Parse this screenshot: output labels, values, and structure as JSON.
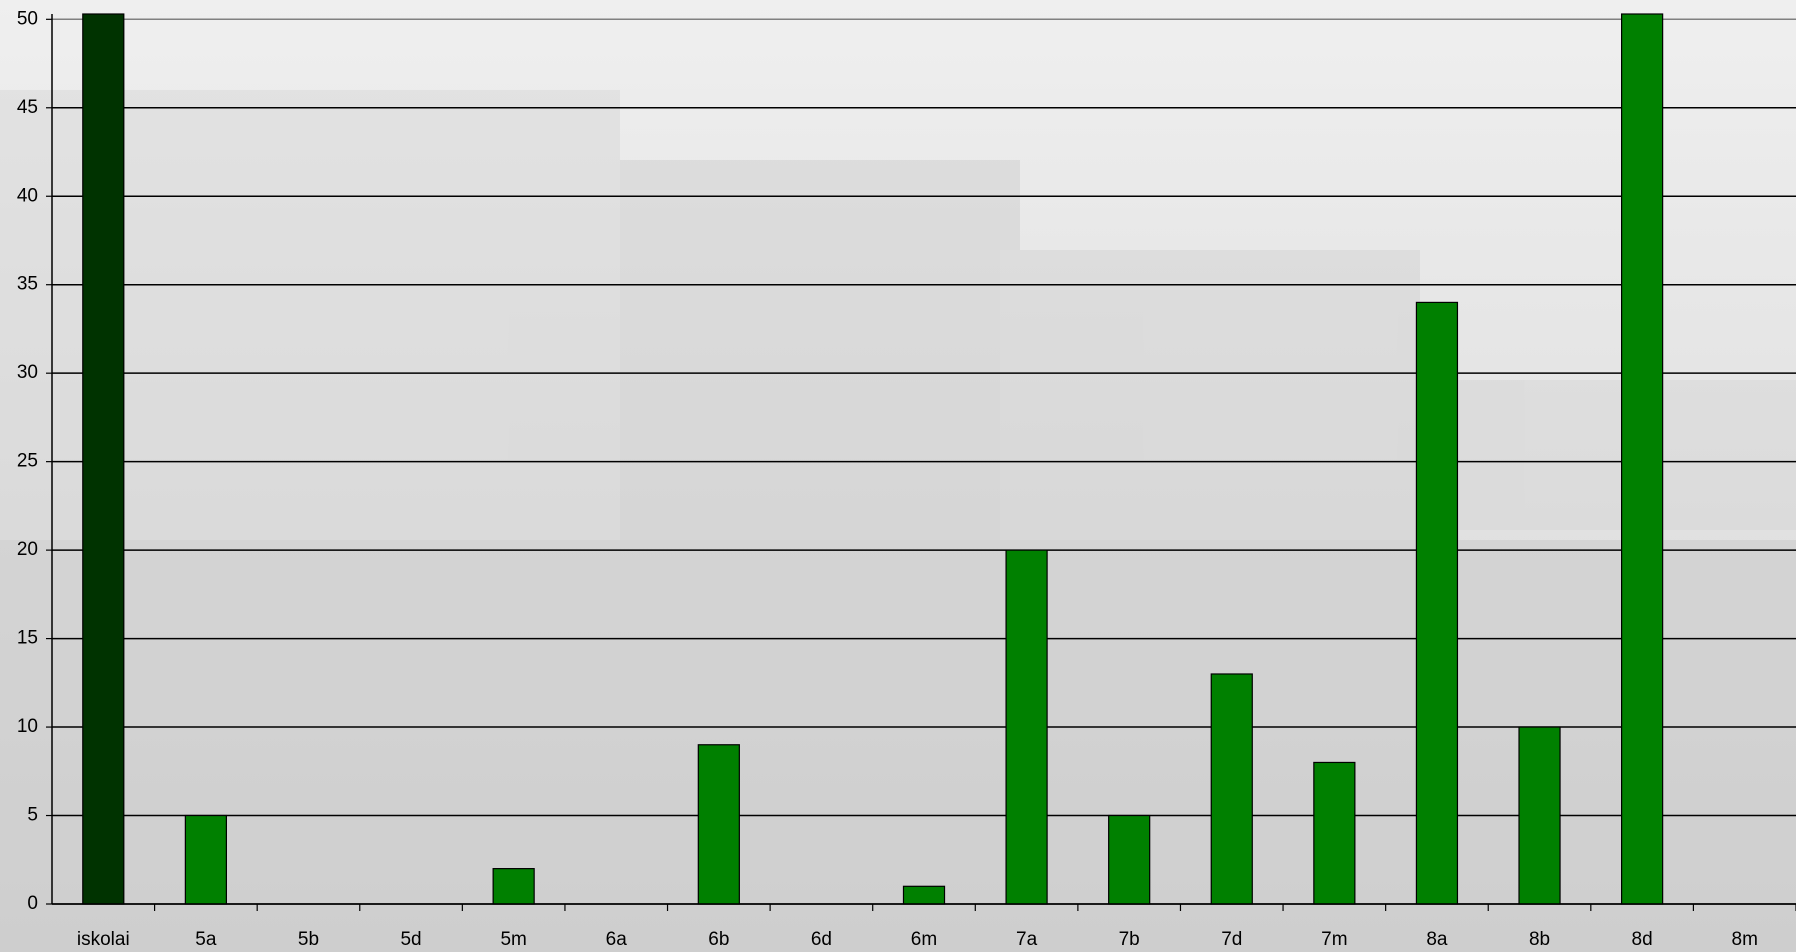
{
  "chart_data": {
    "type": "bar",
    "categories": [
      "iskolai",
      "5a",
      "5b",
      "5d",
      "5m",
      "6a",
      "6b",
      "6d",
      "6m",
      "7a",
      "7b",
      "7d",
      "7m",
      "8a",
      "8b",
      "8d",
      "8m"
    ],
    "values": [
      50.3,
      5,
      0,
      0,
      2,
      0,
      9,
      0,
      1,
      20,
      5,
      13,
      8,
      34,
      10,
      50.3,
      0
    ],
    "colors": [
      "#003300",
      "#008000",
      "#008000",
      "#008000",
      "#008000",
      "#008000",
      "#008000",
      "#008000",
      "#008000",
      "#008000",
      "#008000",
      "#008000",
      "#008000",
      "#008000",
      "#008000",
      "#008000",
      "#008000"
    ],
    "ylim": [
      0,
      50.3
    ],
    "yticks": [
      0,
      5,
      10,
      15,
      20,
      25,
      30,
      35,
      40,
      45,
      50
    ],
    "grid": true
  }
}
